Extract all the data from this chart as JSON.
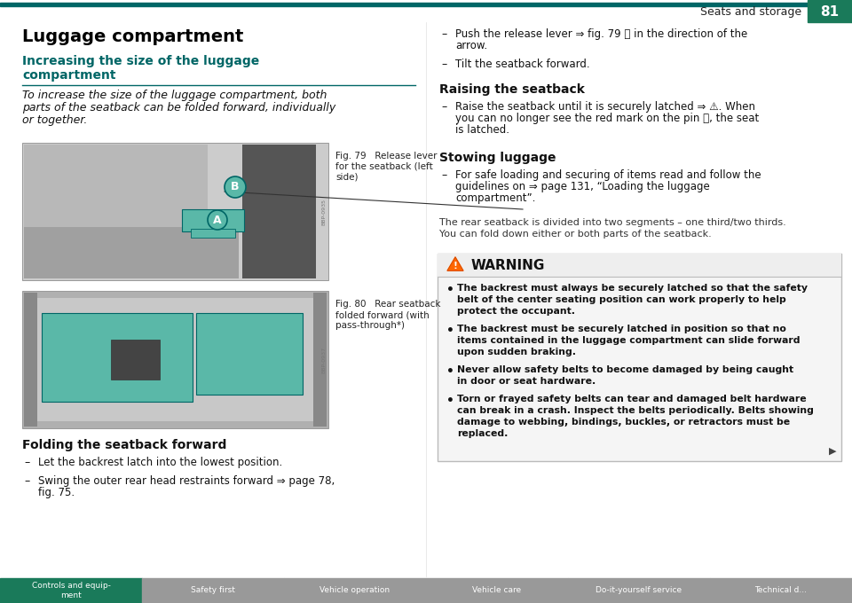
{
  "page_bg": "#ffffff",
  "header_line_color": "#006666",
  "header_text": "Seats and storage",
  "header_page_num": "81",
  "header_page_bg": "#1a7a5a",
  "header_page_text_color": "#ffffff",
  "title_main": "Luggage compartment",
  "subtitle1_line1": "Increasing the size of the luggage",
  "subtitle1_line2": "compartment",
  "subtitle1_color": "#006666",
  "intro_lines": [
    "To increase the size of the luggage compartment, both",
    "parts of the seatback can be folded forward, individually",
    "or together."
  ],
  "fig79_caption_lines": [
    "Fig. 79   Release lever",
    "for the seatback (left",
    "side)"
  ],
  "fig80_caption_lines": [
    "Fig. 80   Rear seatback",
    "folded forward (with",
    "pass-through*)"
  ],
  "section_folding": "Folding the seatback forward",
  "folding_bullets": [
    [
      "Let the backrest latch into the lowest position."
    ],
    [
      "Swing the outer rear head restraints forward ⇒ page 78,",
      "fig. 75."
    ]
  ],
  "right_push_lines": [
    "Push the release lever ⇒ fig. 79 Ⓐ in the direction of the",
    "arrow."
  ],
  "right_tilt": "Tilt the seatback forward.",
  "section_raising": "Raising the seatback",
  "raising_lines": [
    "Raise the seatback until it is securely latched ⇒ ⚠. When",
    "you can no longer see the red mark on the pin Ⓑ, the seat",
    "is latched."
  ],
  "section_stowing": "Stowing luggage",
  "stowing_lines": [
    "For safe loading and securing of items read and follow the",
    "guidelines on ⇒ page 131, “Loading the luggage",
    "compartment”."
  ],
  "note_lines": [
    "The rear seatback is divided into two segments – one third/two thirds.",
    "You can fold down either or both parts of the seatback."
  ],
  "warning_title": "WARNING",
  "warning_bullets": [
    [
      "The backrest must always be securely latched so that the safety",
      "belt of the center seating position can work properly to help",
      "protect the occupant."
    ],
    [
      "The backrest must be securely latched in position so that no",
      "items contained in the luggage compartment can slide forward",
      "upon sudden braking."
    ],
    [
      "Never allow safety belts to become damaged by being caught",
      "in door or seat hardware."
    ],
    [
      "Torn or frayed safety belts can tear and damaged belt hardware",
      "can break in a crash. Inspect the belts periodically. Belts showing",
      "damage to webbing, bindings, buckles, or retractors must be",
      "replaced."
    ]
  ],
  "footer_bg": "#999999",
  "footer_active_bg": "#1a7a5a",
  "footer_tabs": [
    "Controls and equip-\nment",
    "Safety first",
    "Vehicle operation",
    "Vehicle care",
    "Do-it-yourself service",
    "Technical d..."
  ],
  "footer_active_idx": 0,
  "footer_text_color": "#ffffff"
}
